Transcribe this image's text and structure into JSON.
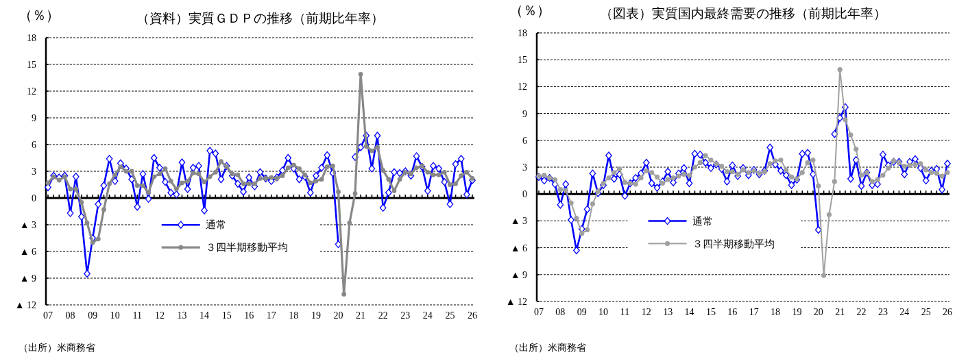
{
  "chart_data": [
    {
      "type": "line",
      "title": "（資料）実質ＧＤＰの推移（前期比年率）",
      "ylabel": "（％）",
      "categories": [
        "07",
        null,
        null,
        null,
        "08",
        null,
        null,
        null,
        "09",
        null,
        null,
        null,
        "10",
        null,
        null,
        null,
        "11",
        null,
        null,
        null,
        "12",
        null,
        null,
        null,
        "13",
        null,
        null,
        null,
        "14",
        null,
        null,
        null,
        "15",
        null,
        null,
        null,
        "16",
        null,
        null,
        null,
        "17",
        null,
        null,
        null,
        "18",
        null,
        null,
        null,
        "19",
        null,
        null,
        null,
        "20",
        null,
        null,
        null,
        "21",
        null,
        null,
        null,
        "22",
        null,
        null,
        null,
        "23",
        null,
        null,
        null,
        "24",
        null,
        null,
        null,
        "25",
        null,
        null,
        null,
        "26"
      ],
      "ylim": [
        -12,
        18
      ],
      "yticks": [
        18,
        15,
        12,
        9,
        6,
        3,
        0,
        {
          "value": -3,
          "label": "▲ 3"
        },
        {
          "value": -6,
          "label": "▲ 6"
        },
        {
          "value": -9,
          "label": "▲ 9"
        },
        {
          "value": -12,
          "label": "▲ 12"
        }
      ],
      "grid": "y",
      "legend": "bottom left",
      "series": [
        {
          "name": "通常",
          "color": "#0000ff",
          "marker": "diamond",
          "values": [
            1.2,
            2.5,
            2.3,
            2.5,
            -1.7,
            2.4,
            -2.1,
            -8.5,
            -4.5,
            -0.7,
            1.4,
            4.4,
            1.9,
            3.9,
            3.3,
            2.1,
            -1.0,
            2.7,
            -0.1,
            4.5,
            3.4,
            1.8,
            0.6,
            0.4,
            4.0,
            1.0,
            3.4,
            3.6,
            -1.4,
            5.3,
            5.0,
            2.1,
            3.6,
            2.5,
            1.6,
            0.7,
            2.3,
            1.3,
            2.9,
            2.2,
            1.9,
            2.3,
            3.1,
            4.5,
            3.3,
            2.1,
            2.4,
            0.6,
            2.5,
            3.4,
            4.8,
            2.8,
            -5.2,
            null,
            null,
            4.6,
            5.7,
            7.0,
            3.3,
            7.0,
            -1.1,
            0.6,
            2.9,
            2.8,
            3.0,
            2.5,
            4.7,
            3.5,
            0.8,
            3.6,
            3.3,
            1.8,
            -0.7,
            3.8,
            4.4,
            0.4,
            2.0
          ]
        },
        {
          "name": "３四半期移動平均",
          "color": "#888888",
          "marker": "circle",
          "values": [
            1.7,
            2.4,
            2.0,
            2.4,
            1.0,
            1.0,
            -0.5,
            -2.8,
            -5.0,
            -4.6,
            -1.3,
            1.6,
            2.6,
            3.5,
            3.0,
            3.0,
            1.4,
            1.4,
            0.6,
            2.4,
            2.7,
            3.3,
            1.9,
            1.0,
            1.7,
            1.9,
            2.8,
            2.7,
            1.8,
            2.4,
            2.9,
            4.1,
            3.5,
            2.7,
            2.6,
            1.6,
            1.6,
            1.6,
            2.2,
            2.2,
            2.3,
            2.2,
            2.5,
            3.4,
            3.7,
            3.3,
            2.6,
            1.7,
            1.9,
            2.1,
            3.5,
            3.6,
            0.7,
            -10.8,
            -2.8,
            0.5,
            13.9,
            5.8,
            5.3,
            5.7,
            3.1,
            2.1,
            0.8,
            2.1,
            2.9,
            2.7,
            3.4,
            3.6,
            2.9,
            2.6,
            2.6,
            2.9,
            1.5,
            1.6,
            2.5,
            2.9,
            2.2
          ]
        }
      ],
      "annotations": [
        "（出所）米商務省"
      ]
    },
    {
      "type": "line",
      "title": "（図表）実質国内最終需要の推移（前期比年率）",
      "ylabel": "（％）",
      "categories": [
        "07",
        null,
        null,
        null,
        "08",
        null,
        null,
        null,
        "09",
        null,
        null,
        null,
        "10",
        null,
        null,
        null,
        "11",
        null,
        null,
        null,
        "12",
        null,
        null,
        null,
        "13",
        null,
        null,
        null,
        "14",
        null,
        null,
        null,
        "15",
        null,
        null,
        null,
        "16",
        null,
        null,
        null,
        "17",
        null,
        null,
        null,
        "18",
        null,
        null,
        null,
        "19",
        null,
        null,
        null,
        "20",
        null,
        null,
        null,
        "21",
        null,
        null,
        null,
        "22",
        null,
        null,
        null,
        "23",
        null,
        null,
        null,
        "24",
        null,
        null,
        null,
        "25",
        null,
        null,
        null,
        "26"
      ],
      "ylim": [
        -12,
        18
      ],
      "yticks": [
        18,
        15,
        12,
        9,
        6,
        3,
        0,
        {
          "value": -3,
          "label": "▲ 3"
        },
        {
          "value": -6,
          "label": "▲ 6"
        },
        {
          "value": -9,
          "label": "▲ 9"
        },
        {
          "value": -12,
          "label": "▲ 12"
        }
      ],
      "grid": "y",
      "legend": "bottom left",
      "series": [
        {
          "name": "通常",
          "color": "#0000ff",
          "marker": "diamond",
          "values": [
            1.9,
            1.5,
            1.8,
            1.1,
            -1.2,
            1.1,
            -2.9,
            -6.3,
            -3.9,
            -1.7,
            2.3,
            0.1,
            1.0,
            4.3,
            1.7,
            2.2,
            -0.2,
            1.2,
            1.8,
            2.3,
            3.5,
            1.2,
            0.7,
            1.4,
            2.5,
            1.3,
            2.3,
            2.9,
            1.2,
            4.5,
            4.4,
            3.5,
            2.9,
            3.3,
            2.8,
            1.4,
            3.2,
            2.0,
            2.9,
            2.1,
            2.7,
            2.2,
            2.6,
            5.2,
            3.3,
            2.6,
            2.1,
            1.0,
            1.6,
            4.5,
            4.6,
            2.2,
            -4.0,
            null,
            null,
            6.7,
            8.5,
            9.7,
            1.7,
            3.8,
            0.9,
            2.4,
            1.0,
            1.1,
            4.4,
            3.2,
            3.6,
            3.6,
            2.2,
            3.6,
            3.9,
            2.9,
            1.5,
            2.6,
            2.8,
            0.5,
            3.4
          ]
        },
        {
          "name": "３四半期移動平均",
          "color": "#a0a0a0",
          "marker": "circle",
          "values": [
            2.0,
            2.1,
            1.8,
            1.6,
            0.5,
            0.4,
            -1.0,
            -2.7,
            -4.4,
            -4.0,
            -1.1,
            0.3,
            1.2,
            1.8,
            2.4,
            2.8,
            1.3,
            1.2,
            1.1,
            1.8,
            2.6,
            2.4,
            1.9,
            1.2,
            1.6,
            1.8,
            2.0,
            2.2,
            2.1,
            3.0,
            3.5,
            4.3,
            3.8,
            3.4,
            3.1,
            2.5,
            2.5,
            2.2,
            2.7,
            2.4,
            2.6,
            2.3,
            2.5,
            3.4,
            3.7,
            3.8,
            2.7,
            1.9,
            1.7,
            2.4,
            3.5,
            3.8,
            0.9,
            -9.1,
            -2.3,
            1.4,
            13.9,
            8.3,
            6.6,
            5.0,
            2.1,
            2.4,
            1.4,
            1.6,
            2.1,
            2.9,
            3.7,
            3.5,
            3.1,
            3.2,
            3.3,
            3.4,
            2.7,
            2.4,
            2.3,
            2.0,
            2.4
          ]
        }
      ],
      "annotations": [
        "（出所）米商務省"
      ]
    }
  ]
}
